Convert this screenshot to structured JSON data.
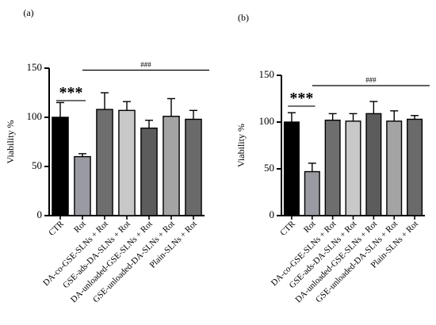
{
  "chart_data": [
    {
      "panel_label": "(a)",
      "type": "bar",
      "categories": [
        "CTR",
        "Rot",
        "DA-co-GSE-SLNs + Rot",
        "GSE-ads-DA-SLNs + Rot",
        "DA-unloaded-GSE-SLNs + Rot",
        "GSE-unloaded-DA-SLNs + Rot",
        "Plain-SLNs + Rot"
      ],
      "values": [
        100,
        60,
        108,
        107,
        89,
        101,
        98
      ],
      "errors": [
        15,
        3,
        17,
        9,
        8,
        18,
        9
      ],
      "colors": [
        "#000000",
        "#9a9aa2",
        "#6e6e6e",
        "#c8c8c8",
        "#5c5c5c",
        "#a4a4a4",
        "#6a6a6a"
      ],
      "ylabel": "Viability %",
      "ylim": [
        0,
        150
      ],
      "yticks": [
        0,
        50,
        100,
        150
      ],
      "annotations": [
        {
          "text": "***",
          "from_category": 0,
          "to_category": 1,
          "y": 117
        },
        {
          "text": "###",
          "from_category": 1,
          "to_category": 6,
          "y": 148
        }
      ]
    },
    {
      "panel_label": "(b)",
      "type": "bar",
      "categories": [
        "CTR",
        "Rot",
        "DA-co-GSE-SLNs + Rot",
        "GSE-ads-DA-SLNs + Rot",
        "DA-unloaded-GSE-SLNs + Rot",
        "GSE-unloaded-DA-SLNs + Rot",
        "Plain-SLNs + Rot"
      ],
      "values": [
        100,
        47,
        102,
        101,
        109,
        101,
        103
      ],
      "errors": [
        10,
        9,
        7,
        8,
        13,
        11,
        4
      ],
      "colors": [
        "#000000",
        "#9a9aa2",
        "#6e6e6e",
        "#c8c8c8",
        "#5c5c5c",
        "#a4a4a4",
        "#6a6a6a"
      ],
      "ylabel": "Viability %",
      "ylim": [
        0,
        150
      ],
      "yticks": [
        0,
        50,
        100,
        150
      ],
      "annotations": [
        {
          "text": "***",
          "from_category": 0,
          "to_category": 1,
          "y": 117
        },
        {
          "text": "###",
          "from_category": 1,
          "to_category": 6,
          "y": 139
        }
      ]
    }
  ]
}
